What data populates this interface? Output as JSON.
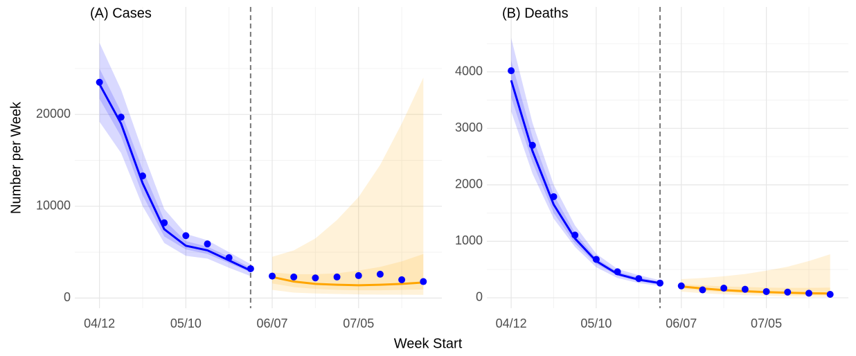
{
  "axis_labels": {
    "x": "Week Start",
    "y": "Number per Week"
  },
  "chart_data": [
    {
      "type": "line",
      "title": "(A) Cases",
      "x": [
        "04/12",
        "04/19",
        "04/26",
        "05/03",
        "05/10",
        "05/17",
        "05/24",
        "05/31",
        "06/07",
        "06/14",
        "06/21",
        "06/28",
        "07/05",
        "07/12",
        "07/19",
        "07/26"
      ],
      "xlim": [
        "04/04",
        "08/01"
      ],
      "xticks": [
        "04/12",
        "05/10",
        "06/07",
        "07/05"
      ],
      "ylim": [
        -1100,
        31700
      ],
      "yticks": [
        0,
        10000,
        20000
      ],
      "grid": true,
      "minor_grid": true,
      "vline": {
        "x": "05/31",
        "color": "#777777"
      },
      "band_opacity": 0.15,
      "points": {
        "color": "#0000ff",
        "values": [
          23500,
          19700,
          13300,
          8200,
          6800,
          5900,
          4400,
          3200,
          2400,
          2300,
          2200,
          2300,
          2450,
          2600,
          2000,
          1800
        ]
      },
      "series": [
        {
          "color": "#0000ff",
          "values": [
            23300,
            19000,
            12500,
            7500,
            5700,
            5200,
            4100,
            3000,
            null,
            null,
            null,
            null,
            null,
            null,
            null,
            null
          ],
          "bands": [
            {
              "low": [
                19200,
                15800,
                10000,
                6000,
                4600,
                4300,
                3300,
                2400,
                null,
                null,
                null,
                null,
                null,
                null,
                null,
                null
              ],
              "high": [
                27800,
                22700,
                16000,
                9700,
                7000,
                6300,
                5000,
                3700,
                null,
                null,
                null,
                null,
                null,
                null,
                null,
                null
              ]
            },
            {
              "low": [
                21700,
                17600,
                11200,
                6700,
                5300,
                4800,
                3800,
                2800,
                null,
                null,
                null,
                null,
                null,
                null,
                null,
                null
              ],
              "high": [
                25000,
                20300,
                14000,
                8500,
                6200,
                5600,
                4500,
                3300,
                null,
                null,
                null,
                null,
                null,
                null,
                null,
                null
              ]
            }
          ]
        },
        {
          "color": "#ffa500",
          "values": [
            null,
            null,
            null,
            null,
            null,
            null,
            null,
            null,
            2300,
            1800,
            1550,
            1450,
            1400,
            1450,
            1550,
            1700
          ],
          "bands": [
            {
              "low": [
                null,
                null,
                null,
                null,
                null,
                null,
                null,
                null,
                900,
                600,
                500,
                450,
                400,
                380,
                370,
                350
              ],
              "high": [
                null,
                null,
                null,
                null,
                null,
                null,
                null,
                null,
                4500,
                5200,
                6500,
                8500,
                11000,
                14500,
                19000,
                24000
              ]
            },
            {
              "low": [
                null,
                null,
                null,
                null,
                null,
                null,
                null,
                null,
                1600,
                1200,
                1000,
                900,
                850,
                850,
                900,
                950
              ],
              "high": [
                null,
                null,
                null,
                null,
                null,
                null,
                null,
                null,
                2800,
                2600,
                2600,
                2700,
                3000,
                3400,
                4000,
                4800
              ]
            }
          ]
        }
      ]
    },
    {
      "type": "line",
      "title": "(B) Deaths",
      "x": [
        "04/12",
        "04/19",
        "04/26",
        "05/03",
        "05/10",
        "05/17",
        "05/24",
        "05/31",
        "06/07",
        "06/14",
        "06/21",
        "06/28",
        "07/05",
        "07/12",
        "07/19",
        "07/26"
      ],
      "xlim": [
        "04/04",
        "08/01"
      ],
      "xticks": [
        "04/12",
        "05/10",
        "06/07",
        "07/05"
      ],
      "ylim": [
        -185,
        5150
      ],
      "yticks": [
        0,
        1000,
        2000,
        3000,
        4000
      ],
      "grid": true,
      "minor_grid": true,
      "vline": {
        "x": "05/31",
        "color": "#777777"
      },
      "band_opacity": 0.15,
      "points": {
        "color": "#0000ff",
        "values": [
          4020,
          2700,
          1790,
          1110,
          680,
          460,
          340,
          260,
          210,
          140,
          170,
          150,
          110,
          100,
          80,
          60
        ]
      },
      "series": [
        {
          "color": "#0000ff",
          "values": [
            3850,
            2600,
            1650,
            1050,
            650,
            420,
            320,
            260,
            null,
            null,
            null,
            null,
            null,
            null,
            null,
            null
          ],
          "bands": [
            {
              "low": [
                3300,
                2200,
                1400,
                900,
                540,
                350,
                260,
                210,
                null,
                null,
                null,
                null,
                null,
                null,
                null,
                null
              ],
              "high": [
                4600,
                3100,
                2000,
                1280,
                780,
                510,
                400,
                310,
                null,
                null,
                null,
                null,
                null,
                null,
                null,
                null
              ]
            },
            {
              "low": [
                3550,
                2400,
                1500,
                960,
                600,
                390,
                290,
                235,
                null,
                null,
                null,
                null,
                null,
                null,
                null,
                null
              ],
              "high": [
                4200,
                2850,
                1820,
                1150,
                700,
                460,
                360,
                285,
                null,
                null,
                null,
                null,
                null,
                null,
                null,
                null
              ]
            }
          ]
        },
        {
          "color": "#ffa500",
          "values": [
            null,
            null,
            null,
            null,
            null,
            null,
            null,
            null,
            200,
            165,
            135,
            115,
            100,
            90,
            80,
            75
          ],
          "bands": [
            {
              "low": [
                null,
                null,
                null,
                null,
                null,
                null,
                null,
                null,
                110,
                80,
                60,
                45,
                35,
                25,
                20,
                15
              ],
              "high": [
                null,
                null,
                null,
                null,
                null,
                null,
                null,
                null,
                330,
                350,
                380,
                420,
                480,
                550,
                650,
                770
              ]
            },
            {
              "low": [
                null,
                null,
                null,
                null,
                null,
                null,
                null,
                null,
                160,
                125,
                100,
                85,
                70,
                60,
                50,
                45
              ],
              "high": [
                null,
                null,
                null,
                null,
                null,
                null,
                null,
                null,
                240,
                220,
                200,
                190,
                180,
                175,
                175,
                180
              ]
            }
          ]
        }
      ]
    }
  ]
}
